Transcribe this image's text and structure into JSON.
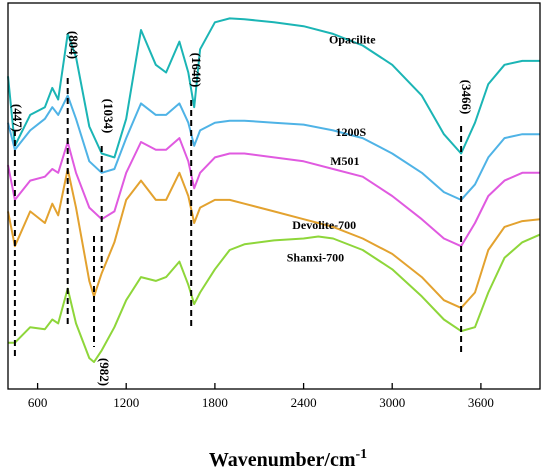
{
  "chart_data": {
    "type": "line",
    "xlabel": "Wavenumber/cm",
    "xlabel_sup": "-1",
    "xlim": [
      400,
      4000
    ],
    "xticks": [
      600,
      1200,
      1800,
      2400,
      3000,
      3600
    ],
    "ylim": [
      0,
      10
    ],
    "yticks_shown": false,
    "legend": "inline labels",
    "peaks": [
      {
        "x": 447,
        "label": "(447)"
      },
      {
        "x": 804,
        "label": "(804)"
      },
      {
        "x": 982,
        "label": "(982)"
      },
      {
        "x": 1034,
        "label": "(1034)"
      },
      {
        "x": 1640,
        "label": "(1640)"
      },
      {
        "x": 3466,
        "label": "(3466)"
      }
    ],
    "series": [
      {
        "name": "Opacilite",
        "color": "#1bb5b5",
        "label_at": [
          2730,
          8.95
        ],
        "x": [
          400,
          447,
          550,
          650,
          700,
          740,
          804,
          860,
          950,
          1034,
          1120,
          1200,
          1300,
          1400,
          1470,
          1560,
          1620,
          1660,
          1700,
          1800,
          1900,
          2000,
          2200,
          2400,
          2600,
          2800,
          3000,
          3200,
          3350,
          3466,
          3560,
          3650,
          3760,
          3880,
          4000
        ],
        "y": [
          8.1,
          6.3,
          7.1,
          7.3,
          7.8,
          7.5,
          9.2,
          8.6,
          6.8,
          6.1,
          6.0,
          7.0,
          9.3,
          8.4,
          8.2,
          9.0,
          8.2,
          7.3,
          8.8,
          9.5,
          9.6,
          9.58,
          9.5,
          9.4,
          9.2,
          8.9,
          8.4,
          7.6,
          6.6,
          6.1,
          6.9,
          7.9,
          8.4,
          8.5,
          8.5
        ]
      },
      {
        "name": "1200S",
        "color": "#4fb3e6",
        "label_at": [
          2720,
          6.55
        ],
        "x": [
          400,
          447,
          550,
          650,
          700,
          740,
          804,
          860,
          950,
          1034,
          1120,
          1200,
          1300,
          1400,
          1470,
          1560,
          1620,
          1660,
          1700,
          1800,
          1900,
          2000,
          2200,
          2400,
          2600,
          2800,
          3000,
          3200,
          3350,
          3466,
          3560,
          3650,
          3760,
          3880,
          4000
        ],
        "y": [
          6.9,
          6.2,
          6.7,
          7.0,
          7.3,
          7.1,
          7.6,
          7.0,
          5.9,
          5.6,
          5.7,
          6.5,
          7.4,
          7.1,
          7.1,
          7.4,
          6.9,
          6.3,
          6.7,
          6.9,
          6.95,
          6.95,
          6.9,
          6.85,
          6.7,
          6.5,
          6.1,
          5.6,
          5.1,
          4.9,
          5.3,
          6.0,
          6.5,
          6.6,
          6.6
        ]
      },
      {
        "name": "M501",
        "color": "#e05ae0",
        "label_at": [
          2680,
          5.8
        ],
        "x": [
          400,
          447,
          550,
          650,
          700,
          740,
          804,
          860,
          950,
          1034,
          1120,
          1200,
          1300,
          1400,
          1470,
          1560,
          1620,
          1660,
          1700,
          1800,
          1900,
          2000,
          2200,
          2400,
          2600,
          2800,
          3000,
          3200,
          3350,
          3466,
          3560,
          3650,
          3760,
          3880,
          4000
        ],
        "y": [
          5.8,
          4.9,
          5.4,
          5.5,
          5.7,
          5.6,
          6.4,
          5.6,
          4.7,
          4.4,
          4.6,
          5.6,
          6.4,
          6.2,
          6.2,
          6.5,
          5.9,
          5.2,
          5.6,
          6.0,
          6.1,
          6.1,
          6.0,
          5.9,
          5.7,
          5.5,
          5.0,
          4.4,
          3.9,
          3.7,
          4.3,
          5.0,
          5.4,
          5.6,
          5.6
        ]
      },
      {
        "name": "Devolite-700",
        "color": "#e3a22f",
        "label_at": [
          2540,
          4.15
        ],
        "x": [
          400,
          447,
          550,
          650,
          700,
          740,
          804,
          860,
          950,
          982,
          1034,
          1120,
          1200,
          1300,
          1400,
          1470,
          1560,
          1620,
          1660,
          1700,
          1800,
          1900,
          2000,
          2200,
          2400,
          2600,
          2800,
          3000,
          3200,
          3350,
          3466,
          3560,
          3650,
          3760,
          3880,
          4000
        ],
        "y": [
          4.6,
          3.7,
          4.6,
          4.3,
          4.8,
          4.5,
          5.7,
          4.7,
          2.8,
          2.4,
          3.0,
          3.8,
          4.9,
          5.4,
          4.9,
          4.9,
          5.6,
          5.0,
          4.3,
          4.7,
          4.9,
          4.9,
          4.8,
          4.6,
          4.4,
          4.2,
          3.9,
          3.5,
          2.9,
          2.3,
          2.1,
          2.5,
          3.6,
          4.2,
          4.35,
          4.4
        ]
      },
      {
        "name": "Shanxi-700",
        "color": "#8ed63a",
        "label_at": [
          2480,
          3.3
        ],
        "x": [
          400,
          447,
          550,
          650,
          700,
          740,
          804,
          860,
          950,
          982,
          1034,
          1120,
          1200,
          1300,
          1400,
          1470,
          1560,
          1620,
          1660,
          1700,
          1800,
          1900,
          2000,
          2200,
          2400,
          2500,
          2600,
          2800,
          3000,
          3200,
          3350,
          3466,
          3560,
          3650,
          3760,
          3880,
          4000
        ],
        "y": [
          1.2,
          1.2,
          1.6,
          1.55,
          1.8,
          1.7,
          2.6,
          1.7,
          0.8,
          0.7,
          1.0,
          1.6,
          2.3,
          2.9,
          2.8,
          2.9,
          3.3,
          2.7,
          2.2,
          2.5,
          3.1,
          3.6,
          3.75,
          3.85,
          3.9,
          3.95,
          3.9,
          3.6,
          3.1,
          2.4,
          1.8,
          1.5,
          1.6,
          2.5,
          3.4,
          3.8,
          4.0
        ]
      }
    ]
  }
}
